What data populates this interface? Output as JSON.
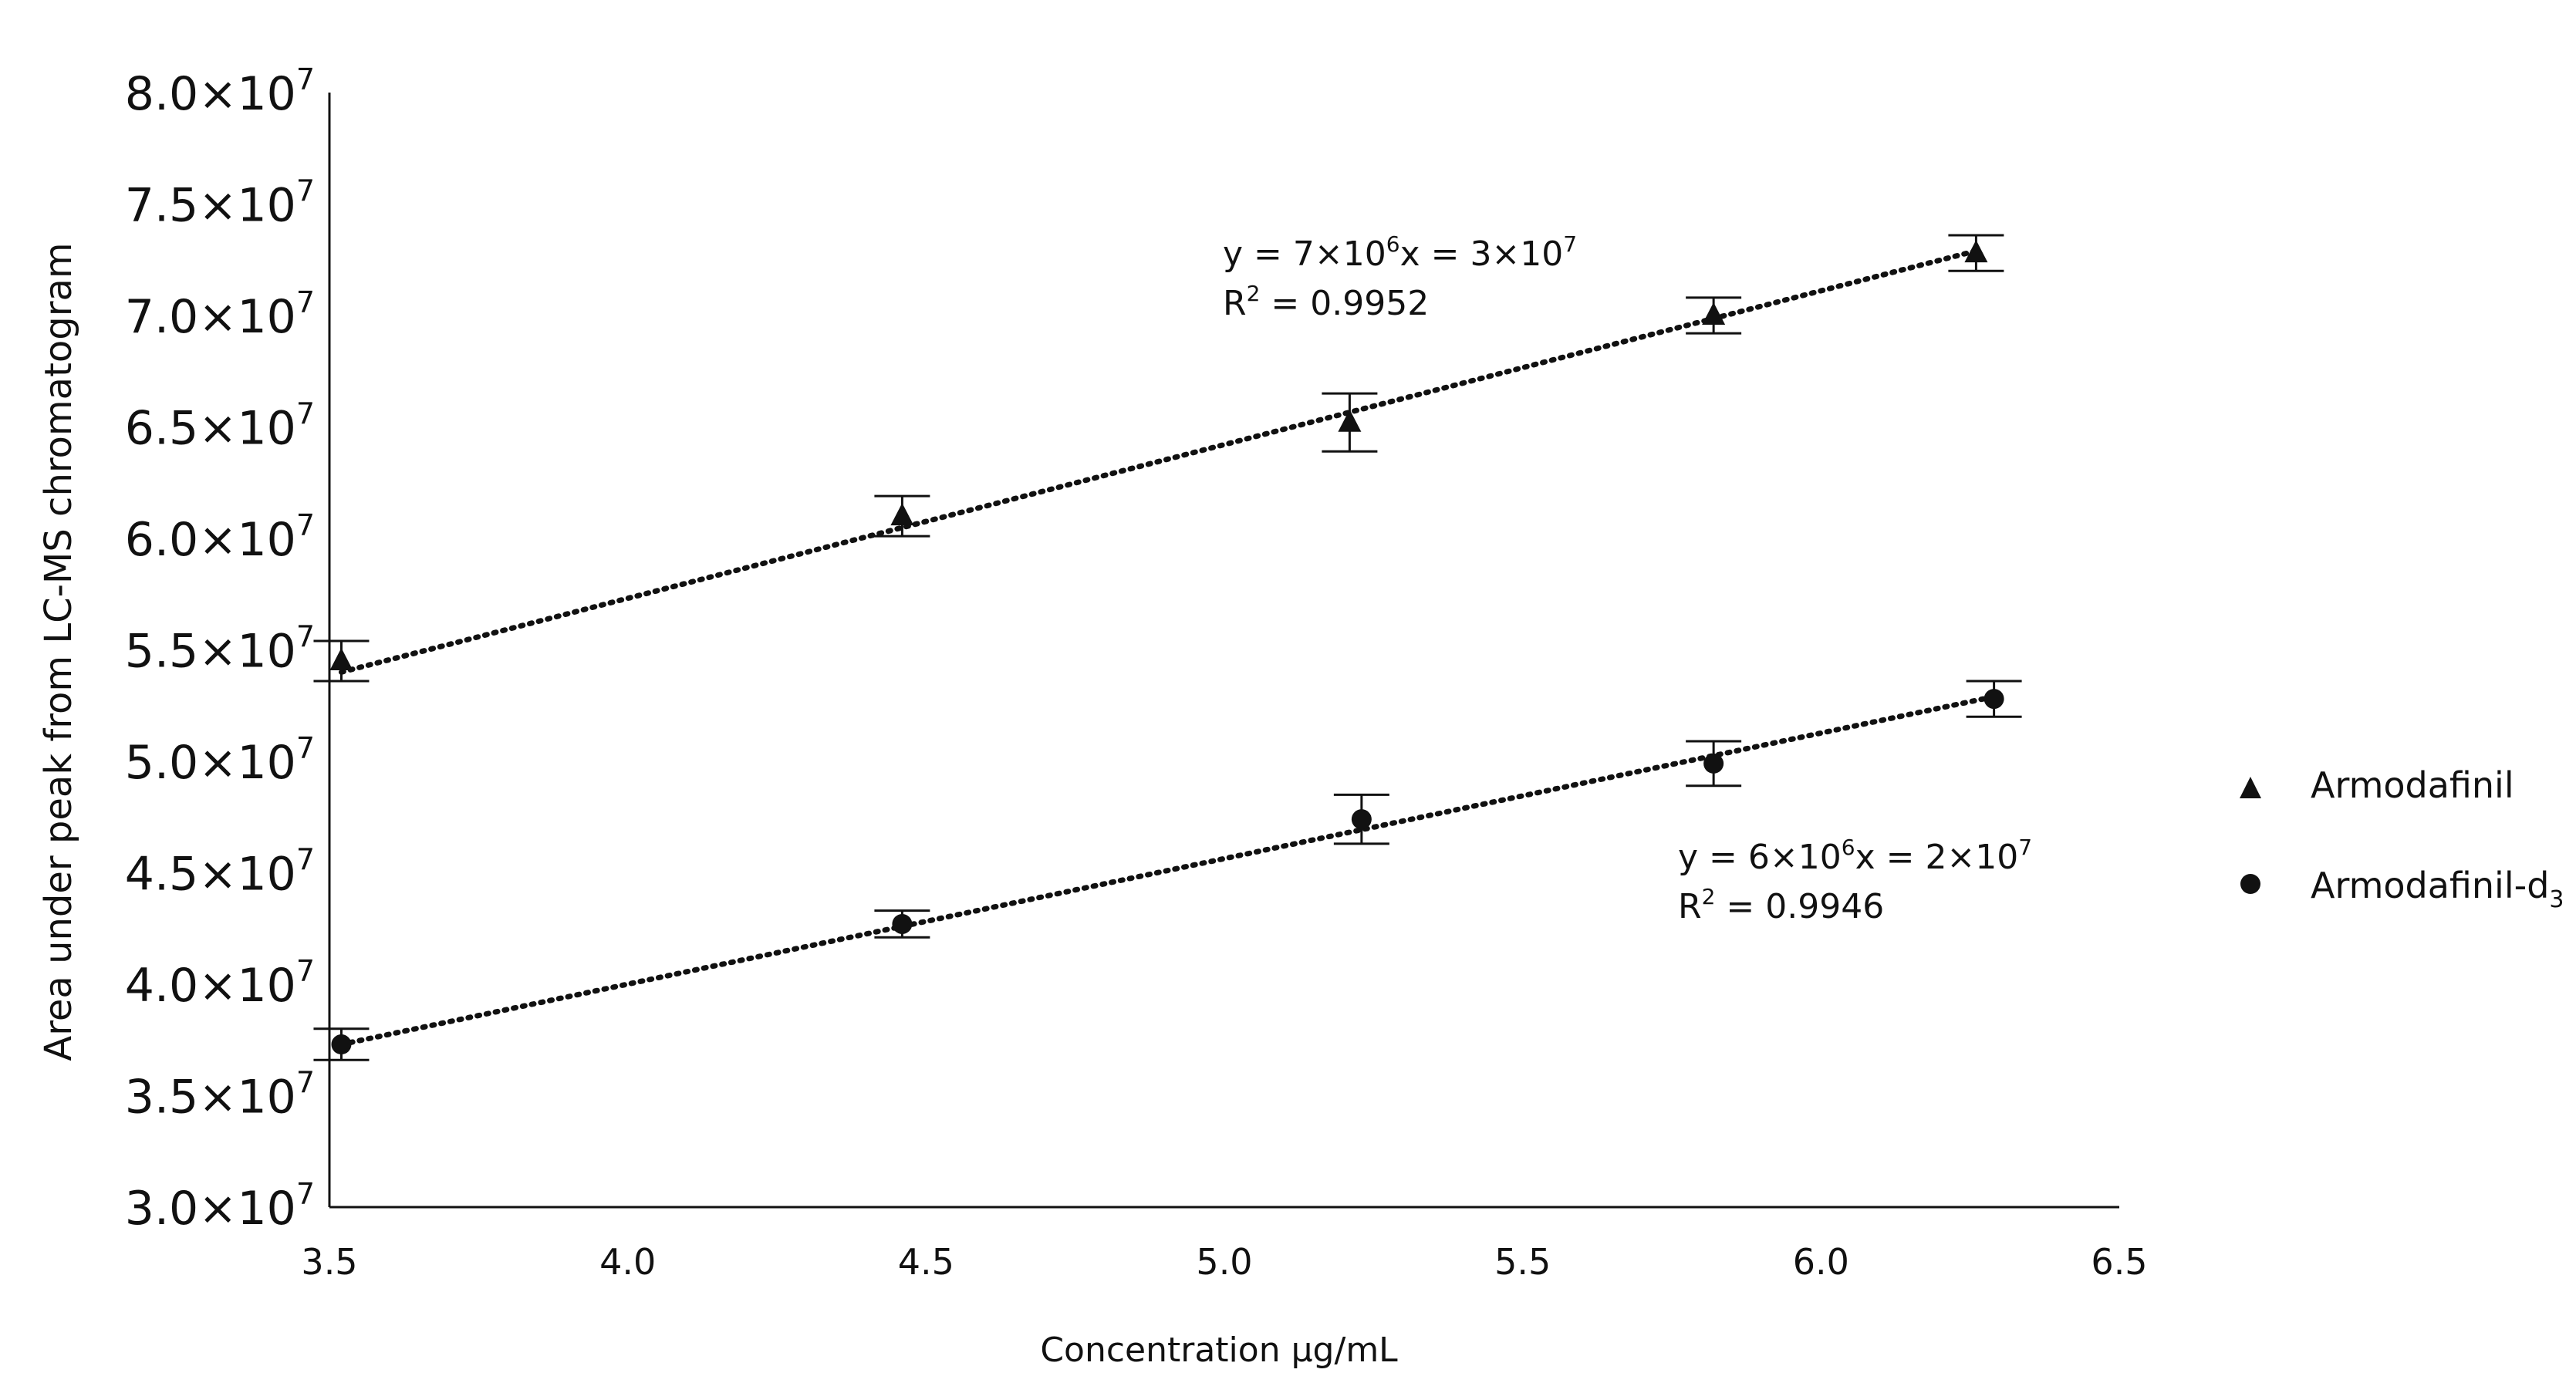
{
  "chart_data": {
    "type": "scatter",
    "title": "",
    "xlabel": "Concentration µg/mL",
    "ylabel": "Area under peak from LC-MS chromatogram",
    "xlim": [
      3.5,
      6.5
    ],
    "ylim": [
      30000000,
      80000000
    ],
    "x_ticks": [
      "3.5",
      "4.0",
      "4.5",
      "5.0",
      "5.5",
      "6.0",
      "6.5"
    ],
    "x_tick_values": [
      3.5,
      4.0,
      4.5,
      5.0,
      5.5,
      6.0,
      6.5
    ],
    "y_ticks": [
      {
        "mantissa": "3.0",
        "value": 30000000
      },
      {
        "mantissa": "3.5",
        "value": 35000000
      },
      {
        "mantissa": "4.0",
        "value": 40000000
      },
      {
        "mantissa": "4.5",
        "value": 45000000
      },
      {
        "mantissa": "5.0",
        "value": 50000000
      },
      {
        "mantissa": "5.5",
        "value": 55000000
      },
      {
        "mantissa": "6.0",
        "value": 60000000
      },
      {
        "mantissa": "6.5",
        "value": 65000000
      },
      {
        "mantissa": "7.0",
        "value": 70000000
      },
      {
        "mantissa": "7.5",
        "value": 75000000
      },
      {
        "mantissa": "8.0",
        "value": 80000000
      }
    ],
    "y_tick_suffix": "×10",
    "y_tick_exp": "7",
    "grid": false,
    "legend_position": "right",
    "series": [
      {
        "name": "Armodafinil",
        "marker": "triangle",
        "x": [
          3.52,
          4.46,
          5.21,
          5.82,
          6.26
        ],
        "y": [
          54500000,
          61000000,
          65200000,
          70000000,
          72800000
        ],
        "err": [
          900000,
          900000,
          1300000,
          800000,
          800000
        ],
        "trend": {
          "x": [
            3.52,
            6.26
          ],
          "y": [
            54000000,
            72900000
          ]
        },
        "equation": {
          "y": "y = 7×10",
          "y_exp": "6",
          "mid": "x = 3×10",
          "mid_exp": "7",
          "r": "R",
          "r_exp": "2",
          "r_val": " = 0.9952"
        }
      },
      {
        "name": "Armodafinil-d",
        "name_sub": "3",
        "marker": "circle",
        "x": [
          3.52,
          4.46,
          5.23,
          5.82,
          6.29
        ],
        "y": [
          37300000,
          42700000,
          47400000,
          49900000,
          52800000
        ],
        "err": [
          700000,
          600000,
          1100000,
          1000000,
          800000
        ],
        "trend": {
          "x": [
            3.52,
            6.29
          ],
          "y": [
            37300000,
            52900000
          ]
        },
        "equation": {
          "y": "y = 6×10",
          "y_exp": "6",
          "mid": "x = 2×10",
          "mid_exp": "7",
          "r": "R",
          "r_exp": "2",
          "r_val": " = 0.9946"
        }
      }
    ]
  }
}
